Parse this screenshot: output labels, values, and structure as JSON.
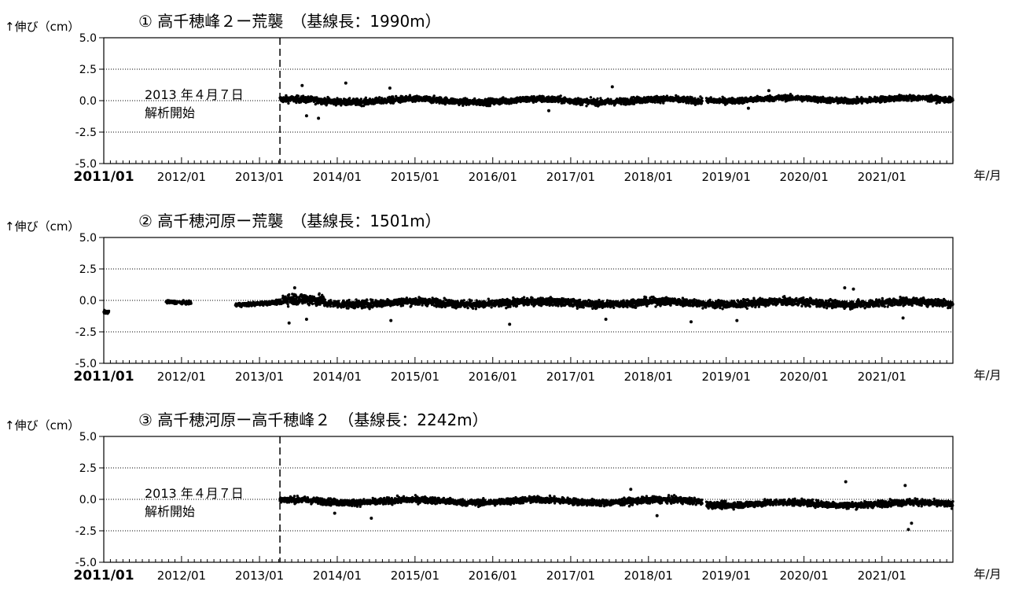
{
  "ylabel": "↑伸び（cm）",
  "xunit": "年/月",
  "annotation": [
    "2013 年４月７日",
    "解析開始"
  ],
  "chart_data": [
    {
      "type": "scatter",
      "title": "① 高千穂峰２ー荒襲　（基線長：1990m）",
      "ylabel": "↑伸び（cm）",
      "xlabel": "年/月",
      "xlim": [
        "2011-01",
        "2021-11"
      ],
      "ylim": [
        -5.0,
        5.0
      ],
      "yticks": [
        "5.0",
        "2.5",
        "0.0",
        "-2.5",
        "-5.0"
      ],
      "xticks": [
        "2011/01",
        "2012/01",
        "2013/01",
        "2014/01",
        "2015/01",
        "2016/01",
        "2017/01",
        "2018/01",
        "2019/01",
        "2020/01",
        "2021/01"
      ],
      "grid": "horizontal dotted at ±2.5 and 0",
      "event_line": "2013-04-07",
      "annotation": [
        "2013 年４月７日",
        "解析開始"
      ],
      "segments": [
        {
          "start": "2013-04-07",
          "end": "2018-09-10",
          "baseline": 0.0,
          "spread": 0.25
        },
        {
          "start": "2018-09-30",
          "end": "2021-11-30",
          "baseline": 0.1,
          "spread": 0.22
        }
      ],
      "outliers": [
        {
          "x": "2013-07-20",
          "y": 1.2
        },
        {
          "x": "2013-08-10",
          "y": -1.2
        },
        {
          "x": "2013-10-05",
          "y": -1.4
        },
        {
          "x": "2014-02-10",
          "y": 1.4
        },
        {
          "x": "2014-09-05",
          "y": 1.0
        },
        {
          "x": "2016-09-20",
          "y": -0.8
        },
        {
          "x": "2017-07-15",
          "y": 1.1
        },
        {
          "x": "2019-04-15",
          "y": -0.6
        },
        {
          "x": "2019-07-20",
          "y": 0.8
        }
      ]
    },
    {
      "type": "scatter",
      "title": "② 高千穂河原ー荒襲　（基線長：1501m）",
      "ylabel": "↑伸び（cm）",
      "xlabel": "年/月",
      "xlim": [
        "2011-01",
        "2021-11"
      ],
      "ylim": [
        -5.0,
        5.0
      ],
      "yticks": [
        "5.0",
        "2.5",
        "0.0",
        "-2.5",
        "-5.0"
      ],
      "xticks": [
        "2011/01",
        "2012/01",
        "2013/01",
        "2014/01",
        "2015/01",
        "2016/01",
        "2017/01",
        "2018/01",
        "2019/01",
        "2020/01",
        "2021/01"
      ],
      "grid": "horizontal dotted at ±2.5 and 0",
      "segments": [
        {
          "start": "2011-01-01",
          "end": "2011-01-25",
          "baseline": -0.8,
          "spread": 0.12
        },
        {
          "start": "2011-10-20",
          "end": "2012-02-15",
          "baseline": -0.25,
          "spread": 0.12
        },
        {
          "start": "2012-09-10",
          "end": "2013-04-20",
          "baseline": -0.25,
          "spread": 0.15
        },
        {
          "start": "2013-04-20",
          "end": "2013-10-30",
          "baseline": 0.0,
          "spread": 0.45
        },
        {
          "start": "2013-10-30",
          "end": "2021-11-30",
          "baseline": -0.2,
          "spread": 0.3
        }
      ],
      "outliers": [
        {
          "x": "2013-05-20",
          "y": -1.8
        },
        {
          "x": "2013-06-15",
          "y": 1.0
        },
        {
          "x": "2013-08-10",
          "y": -1.5
        },
        {
          "x": "2014-09-10",
          "y": -1.6
        },
        {
          "x": "2016-03-20",
          "y": -1.9
        },
        {
          "x": "2017-06-15",
          "y": -1.5
        },
        {
          "x": "2018-07-20",
          "y": -1.7
        },
        {
          "x": "2019-02-20",
          "y": -1.6
        },
        {
          "x": "2020-07-10",
          "y": 1.0
        },
        {
          "x": "2020-08-20",
          "y": 0.9
        },
        {
          "x": "2021-04-10",
          "y": -1.4
        }
      ]
    },
    {
      "type": "scatter",
      "title": "③ 高千穂河原ー高千穂峰２　（基線長：2242m）",
      "ylabel": "↑伸び（cm）",
      "xlabel": "年/月",
      "xlim": [
        "2011-01",
        "2021-11"
      ],
      "ylim": [
        -5.0,
        5.0
      ],
      "yticks": [
        "5.0",
        "2.5",
        "0.0",
        "-2.5",
        "-5.0"
      ],
      "xticks": [
        "2011/01",
        "2012/01",
        "2013/01",
        "2014/01",
        "2015/01",
        "2016/01",
        "2017/01",
        "2018/01",
        "2019/01",
        "2020/01",
        "2021/01"
      ],
      "grid": "horizontal dotted at ±2.5 and 0",
      "event_line": "2013-04-07",
      "annotation": [
        "2013 年４月７日",
        "解析開始"
      ],
      "segments": [
        {
          "start": "2013-04-07",
          "end": "2018-09-10",
          "baseline": -0.15,
          "spread": 0.25
        },
        {
          "start": "2018-09-30",
          "end": "2021-11-30",
          "baseline": -0.35,
          "spread": 0.25
        }
      ],
      "outliers": [
        {
          "x": "2013-12-20",
          "y": -1.1
        },
        {
          "x": "2014-06-10",
          "y": -1.5
        },
        {
          "x": "2017-10-10",
          "y": 0.8
        },
        {
          "x": "2018-02-10",
          "y": -1.3
        },
        {
          "x": "2020-07-15",
          "y": 1.4
        },
        {
          "x": "2021-04-20",
          "y": 1.1
        },
        {
          "x": "2021-05-05",
          "y": -2.4
        },
        {
          "x": "2021-05-20",
          "y": -1.9
        }
      ]
    }
  ]
}
